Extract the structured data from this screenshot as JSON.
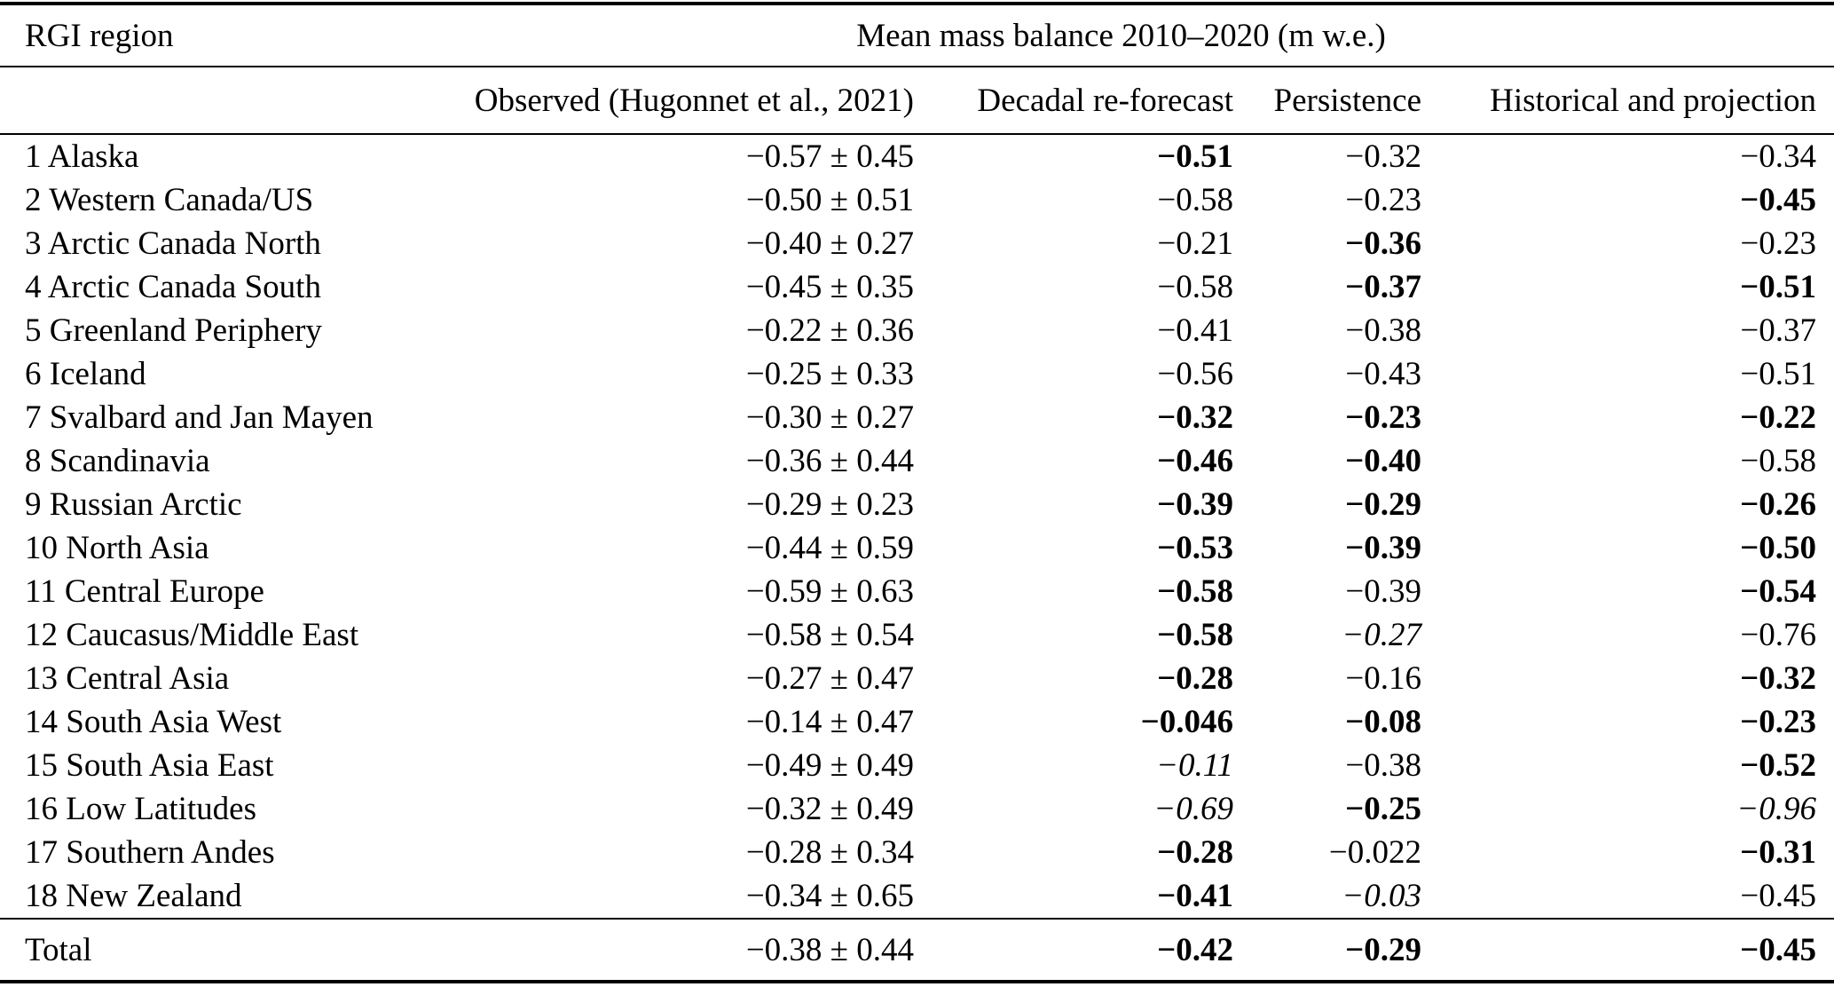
{
  "colors": {
    "text": "#000000",
    "background": "#ffffff"
  },
  "table": {
    "region_header": "RGI region",
    "group_header": "Mean mass balance 2010–2020 (m w.e.)",
    "columns": [
      "Observed (Hugonnet et al., 2021)",
      "Decadal re-forecast",
      "Persistence",
      "Historical and projection"
    ],
    "rows": [
      {
        "region": "1 Alaska",
        "observed": "−0.57 ± 0.45",
        "decadal": {
          "v": "−0.51",
          "em": "bold"
        },
        "persistence": {
          "v": "−0.32",
          "em": "normal"
        },
        "historical": {
          "v": "−0.34",
          "em": "normal"
        }
      },
      {
        "region": "2 Western Canada/US",
        "observed": "−0.50 ± 0.51",
        "decadal": {
          "v": "−0.58",
          "em": "normal"
        },
        "persistence": {
          "v": "−0.23",
          "em": "normal"
        },
        "historical": {
          "v": "−0.45",
          "em": "bold"
        }
      },
      {
        "region": "3 Arctic Canada North",
        "observed": "−0.40 ± 0.27",
        "decadal": {
          "v": "−0.21",
          "em": "normal"
        },
        "persistence": {
          "v": "−0.36",
          "em": "bold"
        },
        "historical": {
          "v": "−0.23",
          "em": "normal"
        }
      },
      {
        "region": "4 Arctic Canada South",
        "observed": "−0.45 ± 0.35",
        "decadal": {
          "v": "−0.58",
          "em": "normal"
        },
        "persistence": {
          "v": "−0.37",
          "em": "bold"
        },
        "historical": {
          "v": "−0.51",
          "em": "bold"
        }
      },
      {
        "region": "5 Greenland Periphery",
        "observed": "−0.22 ± 0.36",
        "decadal": {
          "v": "−0.41",
          "em": "normal"
        },
        "persistence": {
          "v": "−0.38",
          "em": "normal"
        },
        "historical": {
          "v": "−0.37",
          "em": "normal"
        }
      },
      {
        "region": "6 Iceland",
        "observed": "−0.25 ± 0.33",
        "decadal": {
          "v": "−0.56",
          "em": "normal"
        },
        "persistence": {
          "v": "−0.43",
          "em": "normal"
        },
        "historical": {
          "v": "−0.51",
          "em": "normal"
        }
      },
      {
        "region": "7 Svalbard and Jan Mayen",
        "observed": "−0.30 ± 0.27",
        "decadal": {
          "v": "−0.32",
          "em": "bold"
        },
        "persistence": {
          "v": "−0.23",
          "em": "bold"
        },
        "historical": {
          "v": "−0.22",
          "em": "bold"
        }
      },
      {
        "region": "8 Scandinavia",
        "observed": "−0.36 ± 0.44",
        "decadal": {
          "v": "−0.46",
          "em": "bold"
        },
        "persistence": {
          "v": "−0.40",
          "em": "bold"
        },
        "historical": {
          "v": "−0.58",
          "em": "normal"
        }
      },
      {
        "region": "9 Russian Arctic",
        "observed": "−0.29 ± 0.23",
        "decadal": {
          "v": "−0.39",
          "em": "bold"
        },
        "persistence": {
          "v": "−0.29",
          "em": "bold"
        },
        "historical": {
          "v": "−0.26",
          "em": "bold"
        }
      },
      {
        "region": "10 North Asia",
        "observed": "−0.44 ± 0.59",
        "decadal": {
          "v": "−0.53",
          "em": "bold"
        },
        "persistence": {
          "v": "−0.39",
          "em": "bold"
        },
        "historical": {
          "v": "−0.50",
          "em": "bold"
        }
      },
      {
        "region": "11 Central Europe",
        "observed": "−0.59 ± 0.63",
        "decadal": {
          "v": "−0.58",
          "em": "bold"
        },
        "persistence": {
          "v": "−0.39",
          "em": "normal"
        },
        "historical": {
          "v": "−0.54",
          "em": "bold"
        }
      },
      {
        "region": "12 Caucasus/Middle East",
        "observed": "−0.58 ± 0.54",
        "decadal": {
          "v": "−0.58",
          "em": "bold"
        },
        "persistence": {
          "v": "−0.27",
          "em": "italic"
        },
        "historical": {
          "v": "−0.76",
          "em": "normal"
        }
      },
      {
        "region": "13 Central Asia",
        "observed": "−0.27 ± 0.47",
        "decadal": {
          "v": "−0.28",
          "em": "bold"
        },
        "persistence": {
          "v": "−0.16",
          "em": "normal"
        },
        "historical": {
          "v": "−0.32",
          "em": "bold"
        }
      },
      {
        "region": "14 South Asia West",
        "observed": "−0.14 ± 0.47",
        "decadal": {
          "v": "−0.046",
          "em": "bold"
        },
        "persistence": {
          "v": "−0.08",
          "em": "bold"
        },
        "historical": {
          "v": "−0.23",
          "em": "bold"
        }
      },
      {
        "region": "15 South Asia East",
        "observed": "−0.49 ± 0.49",
        "decadal": {
          "v": "−0.11",
          "em": "italic"
        },
        "persistence": {
          "v": "−0.38",
          "em": "normal"
        },
        "historical": {
          "v": "−0.52",
          "em": "bold"
        }
      },
      {
        "region": "16 Low Latitudes",
        "observed": "−0.32 ± 0.49",
        "decadal": {
          "v": "−0.69",
          "em": "italic"
        },
        "persistence": {
          "v": "−0.25",
          "em": "bold"
        },
        "historical": {
          "v": "−0.96",
          "em": "italic"
        }
      },
      {
        "region": "17 Southern Andes",
        "observed": "−0.28 ± 0.34",
        "decadal": {
          "v": "−0.28",
          "em": "bold"
        },
        "persistence": {
          "v": "−0.022",
          "em": "normal"
        },
        "historical": {
          "v": "−0.31",
          "em": "bold"
        }
      },
      {
        "region": "18 New Zealand",
        "observed": "−0.34 ± 0.65",
        "decadal": {
          "v": "−0.41",
          "em": "bold"
        },
        "persistence": {
          "v": "−0.03",
          "em": "italic"
        },
        "historical": {
          "v": "−0.45",
          "em": "normal"
        }
      }
    ],
    "total": {
      "region": "Total",
      "observed": "−0.38 ± 0.44",
      "decadal": {
        "v": "−0.42",
        "em": "bold"
      },
      "persistence": {
        "v": "−0.29",
        "em": "bold"
      },
      "historical": {
        "v": "−0.45",
        "em": "bold"
      }
    }
  }
}
